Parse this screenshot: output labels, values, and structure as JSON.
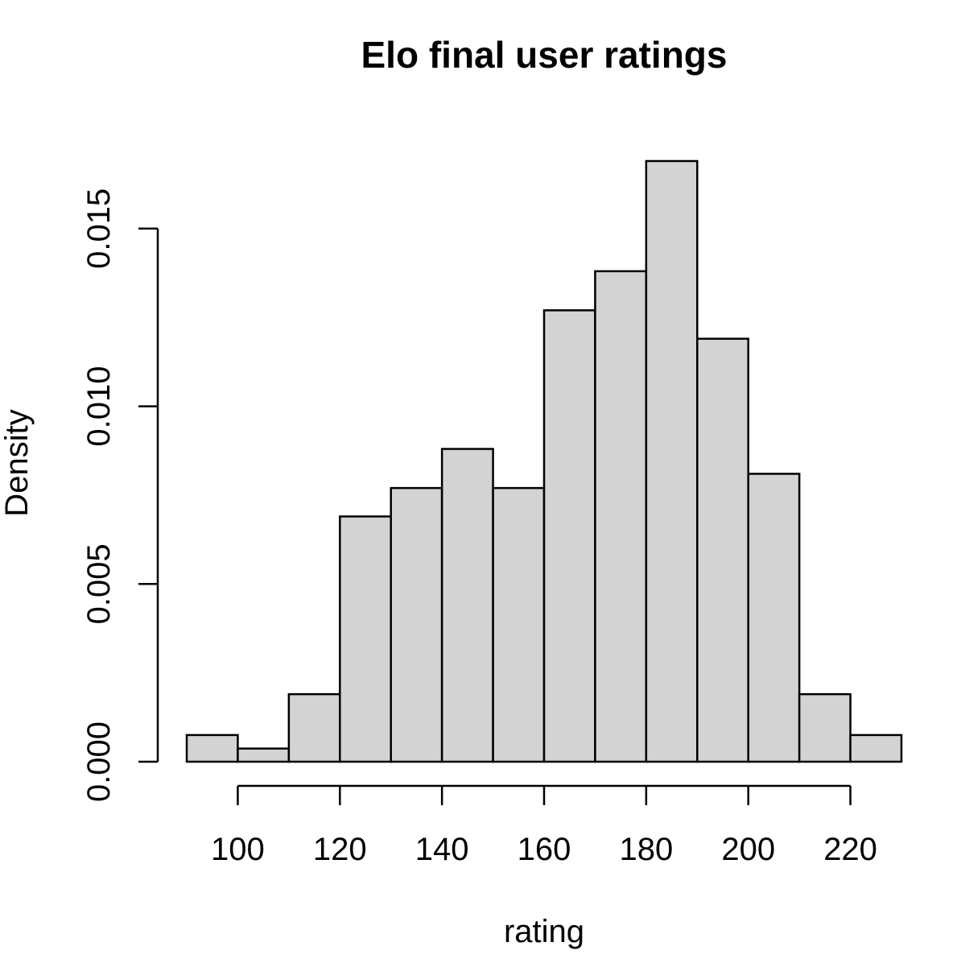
{
  "chart_data": {
    "type": "bar",
    "title": "Elo final user ratings",
    "xlabel": "rating",
    "ylabel": "Density",
    "bin_edges": [
      90,
      100,
      110,
      120,
      130,
      140,
      150,
      160,
      170,
      180,
      190,
      200,
      210,
      220,
      230
    ],
    "values": [
      0.00075,
      0.00037,
      0.0019,
      0.0069,
      0.0077,
      0.0088,
      0.0077,
      0.0127,
      0.0138,
      0.0169,
      0.0119,
      0.0081,
      0.0019,
      0.00075
    ],
    "xticks": [
      100,
      120,
      140,
      160,
      180,
      200,
      220
    ],
    "xtick_labels": [
      "100",
      "120",
      "140",
      "160",
      "180",
      "200",
      "220"
    ],
    "yticks": [
      0,
      0.005,
      0.01,
      0.015
    ],
    "ytick_labels": [
      "0.000",
      "0.005",
      "0.010",
      "0.015"
    ],
    "xlim": [
      90,
      230
    ],
    "ylim": [
      0,
      0.0169
    ],
    "grid": false,
    "bar_color": "#d3d3d3",
    "edge_color": "#000000"
  }
}
